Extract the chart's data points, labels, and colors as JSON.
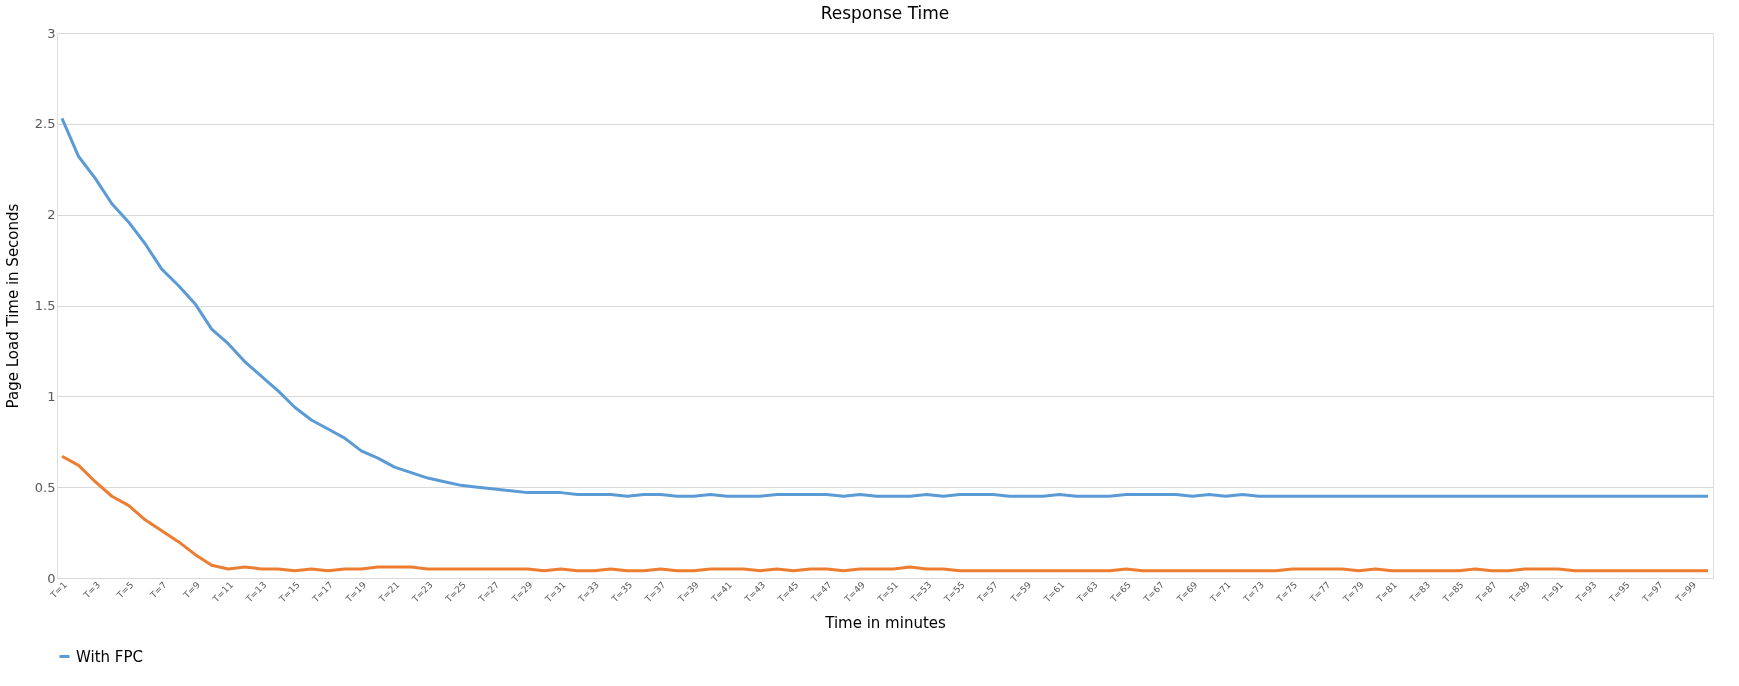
{
  "chart_data": {
    "type": "line",
    "title": "Response Time",
    "xlabel": "Time in minutes",
    "ylabel": "Page Load Time in Seconds",
    "categories": [
      "T=1",
      null,
      "T=3",
      null,
      "T=5",
      null,
      "T=7",
      null,
      "T=9",
      null,
      "T=11",
      null,
      "T=13",
      null,
      "T=15",
      null,
      "T=17",
      null,
      "T=19",
      null,
      "T=21",
      null,
      "T=23",
      null,
      "T=25",
      null,
      "T=27",
      null,
      "T=29",
      null,
      "T=31",
      null,
      "T=33",
      null,
      "T=35",
      null,
      "T=37",
      null,
      "T=39",
      null,
      "T=41",
      null,
      "T=43",
      null,
      "T=45",
      null,
      "T=47",
      null,
      "T=49",
      null,
      "T=51",
      null,
      "T=53",
      null,
      "T=55",
      null,
      "T=57",
      null,
      "T=59",
      null,
      "T=61",
      null,
      "T=63",
      null,
      "T=65",
      null,
      "T=67",
      null,
      "T=69",
      null,
      "T=71",
      null,
      "T=73",
      null,
      "T=75",
      null,
      "T=77",
      null,
      "T=79",
      null,
      "T=81",
      null,
      "T=83",
      null,
      "T=85",
      null,
      "T=87",
      null,
      "T=89",
      null,
      "T=91",
      null,
      "T=93",
      null,
      "T=95",
      null,
      "T=97",
      null,
      "T=99",
      null
    ],
    "series": [
      {
        "name": "With FPC",
        "color": "#5b9bd5",
        "values": [
          2.53,
          2.32,
          2.2,
          2.06,
          1.96,
          1.84,
          1.7,
          1.61,
          1.51,
          1.37,
          1.29,
          1.19,
          1.11,
          1.03,
          0.94,
          0.87,
          0.82,
          0.77,
          0.7,
          0.66,
          0.61,
          0.58,
          0.55,
          0.53,
          0.51,
          0.5,
          0.49,
          0.48,
          0.47,
          0.47,
          0.47,
          0.46,
          0.46,
          0.46,
          0.45,
          0.46,
          0.46,
          0.45,
          0.45,
          0.46,
          0.45,
          0.45,
          0.45,
          0.46,
          0.46,
          0.46,
          0.46,
          0.45,
          0.46,
          0.45,
          0.45,
          0.45,
          0.46,
          0.45,
          0.46,
          0.46,
          0.46,
          0.45,
          0.45,
          0.45,
          0.46,
          0.45,
          0.45,
          0.45,
          0.46,
          0.46,
          0.46,
          0.46,
          0.45,
          0.46,
          0.45,
          0.46,
          0.45,
          0.45,
          0.45,
          0.45,
          0.45,
          0.45,
          0.45,
          0.45,
          0.45,
          0.45,
          0.45,
          0.45,
          0.45,
          0.45,
          0.45,
          0.45,
          0.45,
          0.45,
          0.45,
          0.45,
          0.45,
          0.45,
          0.45,
          0.45,
          0.45,
          0.45,
          0.45,
          0.45
        ]
      },
      {
        "color": "#ed7d31",
        "values": [
          0.67,
          0.62,
          0.53,
          0.45,
          0.4,
          0.32,
          0.26,
          0.2,
          0.13,
          0.07,
          0.05,
          0.06,
          0.05,
          0.05,
          0.04,
          0.05,
          0.04,
          0.05,
          0.05,
          0.06,
          0.06,
          0.06,
          0.05,
          0.05,
          0.05,
          0.05,
          0.05,
          0.05,
          0.05,
          0.04,
          0.05,
          0.04,
          0.04,
          0.05,
          0.04,
          0.04,
          0.05,
          0.04,
          0.04,
          0.05,
          0.05,
          0.05,
          0.04,
          0.05,
          0.04,
          0.05,
          0.05,
          0.04,
          0.05,
          0.05,
          0.05,
          0.06,
          0.05,
          0.05,
          0.04,
          0.04,
          0.04,
          0.04,
          0.04,
          0.04,
          0.04,
          0.04,
          0.04,
          0.04,
          0.05,
          0.04,
          0.04,
          0.04,
          0.04,
          0.04,
          0.04,
          0.04,
          0.04,
          0.04,
          0.05,
          0.05,
          0.05,
          0.05,
          0.04,
          0.05,
          0.04,
          0.04,
          0.04,
          0.04,
          0.04,
          0.05,
          0.04,
          0.04,
          0.05,
          0.05,
          0.05,
          0.04,
          0.04,
          0.04,
          0.04,
          0.04,
          0.04,
          0.04,
          0.04,
          0.04
        ]
      }
    ],
    "ylim": [
      0,
      3
    ],
    "yticks": [
      0,
      0.5,
      1,
      1.5,
      2,
      2.5,
      3
    ],
    "grid": "y",
    "legend": "bottom",
    "marker": "none",
    "line_style": "solid"
  }
}
